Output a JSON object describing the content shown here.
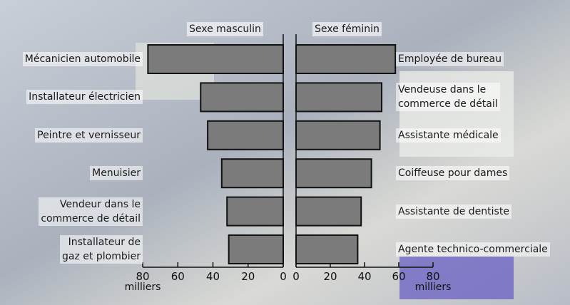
{
  "chart_data": {
    "type": "butterfly-bar",
    "color": "#7b7b7b",
    "panels": [
      {
        "name": "Sexe masculin",
        "side": "left",
        "categories": [
          "Mécanicien automobile",
          "Installateur électricien",
          "Peintre et vernisseur",
          "Menuisier",
          "Vendeur dans le\ncommerce de détail",
          "Installateur de\ngaz et plombier"
        ],
        "values": [
          77,
          47,
          43,
          35,
          32,
          31
        ],
        "xlim": [
          0,
          80
        ],
        "xticks": [
          0,
          20,
          40,
          60,
          80
        ],
        "x_label": "milliers"
      },
      {
        "name": "Sexe féminin",
        "side": "right",
        "categories": [
          "Employée de bureau",
          "Vendeuse dans le\ncommerce de détail",
          "Assistante médicale",
          "Coiffeuse pour dames",
          "Assistante de dentiste",
          "Agente technico-commerciale"
        ],
        "values": [
          58,
          50,
          49,
          44,
          38,
          36
        ],
        "xlim": [
          0,
          80
        ],
        "xticks": [
          0,
          20,
          40,
          60,
          80
        ],
        "x_label": "milliers"
      }
    ]
  }
}
